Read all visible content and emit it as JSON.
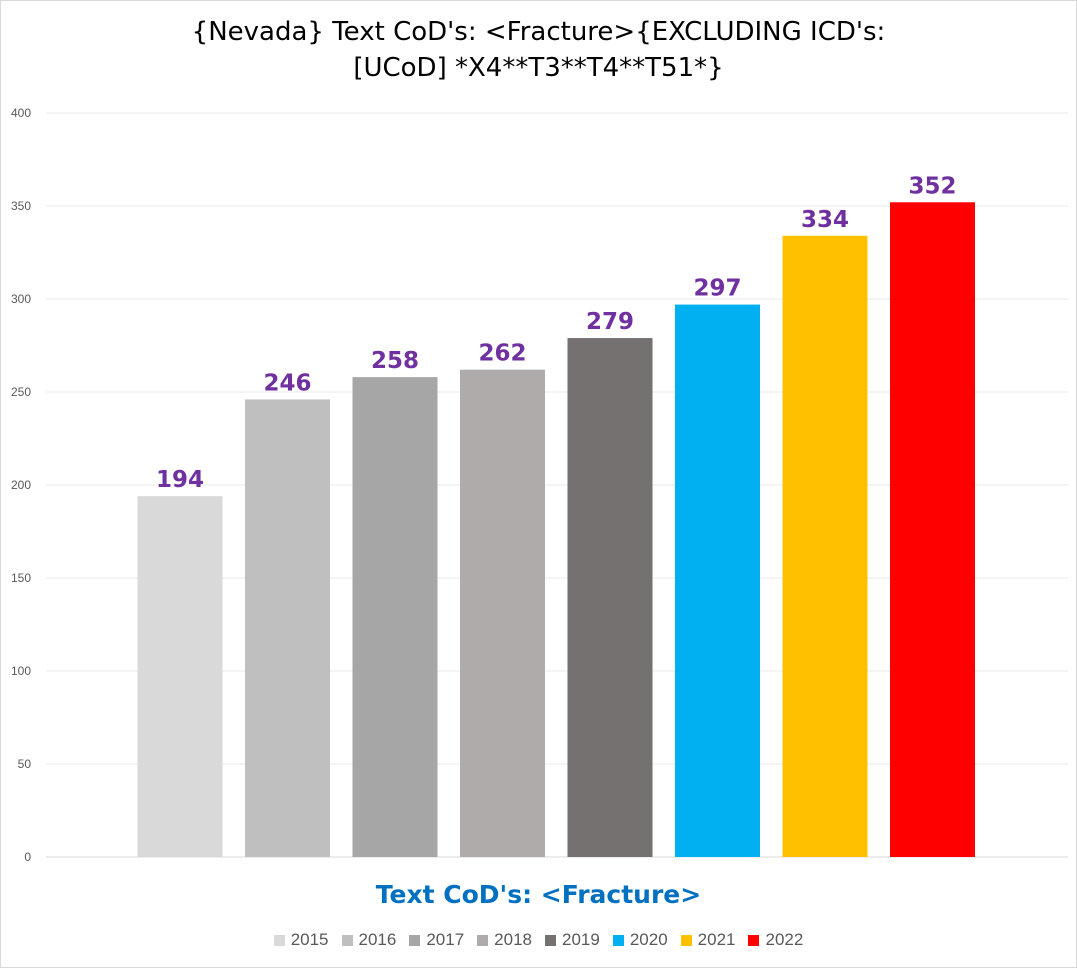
{
  "chart_data": {
    "type": "bar",
    "title": "{Nevada}  Text CoD's: <Fracture>{EXCLUDING ICD's:\n[UCoD] *X4**T3**T4**T51*}",
    "xlabel": "Text CoD's: <Fracture>",
    "ylabel": "",
    "ylim": [
      0,
      400
    ],
    "yticks": [
      0,
      50,
      100,
      150,
      200,
      250,
      300,
      350,
      400
    ],
    "grid": true,
    "legend_position": "bottom",
    "categories": [
      "2015",
      "2016",
      "2017",
      "2018",
      "2019",
      "2020",
      "2021",
      "2022"
    ],
    "values": [
      194,
      246,
      258,
      262,
      279,
      297,
      334,
      352
    ],
    "colors": [
      "#d9d9d9",
      "#bfbfbf",
      "#a6a6a6",
      "#afabab",
      "#767171",
      "#00b0f0",
      "#ffc000",
      "#ff0000"
    ],
    "data_label_color": "#7030a0"
  }
}
